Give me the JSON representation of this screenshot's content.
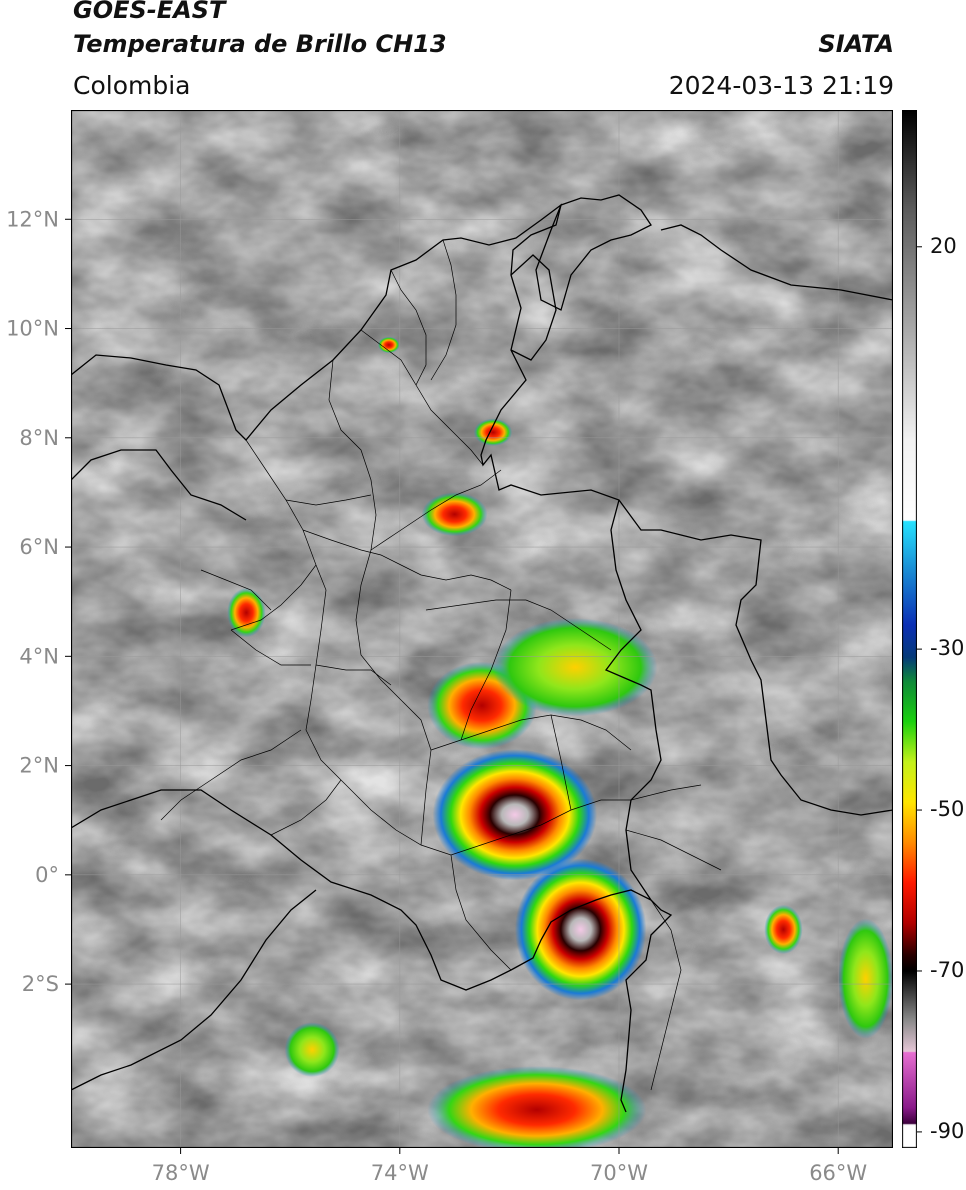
{
  "header": {
    "satellite": "GOES-EAST",
    "product": "Temperatura de Brillo CH13",
    "agency": "SIATA",
    "region": "Colombia",
    "datetime": "2024-03-13 21:19"
  },
  "map": {
    "lat_range": [
      -5.0,
      14.0
    ],
    "lon_range": [
      -80.0,
      -65.0
    ],
    "lat_ticks": [
      {
        "value": 12,
        "label": "12°N"
      },
      {
        "value": 10,
        "label": "10°N"
      },
      {
        "value": 8,
        "label": "8°N"
      },
      {
        "value": 6,
        "label": "6°N"
      },
      {
        "value": 4,
        "label": "4°N"
      },
      {
        "value": 2,
        "label": "2°N"
      },
      {
        "value": 0,
        "label": "0°"
      },
      {
        "value": -2,
        "label": "2°S"
      }
    ],
    "lon_ticks": [
      {
        "value": -78,
        "label": "78°W"
      },
      {
        "value": -74,
        "label": "74°W"
      },
      {
        "value": -70,
        "label": "70°W"
      },
      {
        "value": -66,
        "label": "66°W"
      }
    ],
    "gridlines": true
  },
  "colorbar": {
    "range": [
      -92,
      37
    ],
    "labels": [
      {
        "value": 20,
        "label": "20"
      },
      {
        "value": -30,
        "label": "-30"
      },
      {
        "value": -50,
        "label": "-50"
      },
      {
        "value": -70,
        "label": "-70"
      },
      {
        "value": -90,
        "label": "-90"
      }
    ],
    "stops": [
      {
        "value": 37,
        "color": "#000000"
      },
      {
        "value": 25,
        "color": "#5a5a5a"
      },
      {
        "value": 10,
        "color": "#a8a8a8"
      },
      {
        "value": -4,
        "color": "#f2f2f2"
      },
      {
        "value": -14,
        "color": "#ffffff"
      },
      {
        "value": -14.1,
        "color": "#26e3ff"
      },
      {
        "value": -20,
        "color": "#1a8fd6"
      },
      {
        "value": -27,
        "color": "#0b2fb5"
      },
      {
        "value": -31,
        "color": "#053a7a"
      },
      {
        "value": -34,
        "color": "#0f8a3a"
      },
      {
        "value": -39,
        "color": "#1bd10f"
      },
      {
        "value": -44,
        "color": "#c3f21b"
      },
      {
        "value": -49,
        "color": "#ffe600"
      },
      {
        "value": -54,
        "color": "#ff8c00"
      },
      {
        "value": -59,
        "color": "#ff1a00"
      },
      {
        "value": -64,
        "color": "#b30000"
      },
      {
        "value": -68,
        "color": "#2a0000"
      },
      {
        "value": -70,
        "color": "#000000"
      },
      {
        "value": -76,
        "color": "#888888"
      },
      {
        "value": -80,
        "color": "#e6c7d7"
      },
      {
        "value": -80.1,
        "color": "#e86fd2"
      },
      {
        "value": -87,
        "color": "#8a1a8a"
      },
      {
        "value": -89,
        "color": "#3b003b"
      },
      {
        "value": -89.1,
        "color": "#ffffff"
      },
      {
        "value": -92,
        "color": "#ffffff"
      }
    ]
  },
  "storms": [
    {
      "lon": -71.9,
      "lat": 1.1,
      "rx": 1.5,
      "ry": 1.2,
      "min_temp": -88
    },
    {
      "lon": -70.7,
      "lat": -1.0,
      "rx": 1.2,
      "ry": 1.3,
      "min_temp": -85
    },
    {
      "lon": -72.5,
      "lat": 3.1,
      "rx": 1.0,
      "ry": 0.8,
      "min_temp": -65
    },
    {
      "lon": -70.8,
      "lat": 3.8,
      "rx": 1.5,
      "ry": 0.9,
      "min_temp": -52
    },
    {
      "lon": -73.0,
      "lat": 6.6,
      "rx": 0.6,
      "ry": 0.4,
      "min_temp": -63
    },
    {
      "lon": -76.8,
      "lat": 4.8,
      "rx": 0.35,
      "ry": 0.45,
      "min_temp": -68
    },
    {
      "lon": -67.0,
      "lat": -1.0,
      "rx": 0.35,
      "ry": 0.45,
      "min_temp": -58
    },
    {
      "lon": -72.3,
      "lat": 8.1,
      "rx": 0.35,
      "ry": 0.25,
      "min_temp": -55
    },
    {
      "lon": -74.2,
      "lat": 9.7,
      "rx": 0.2,
      "ry": 0.15,
      "min_temp": -63
    },
    {
      "lon": -71.5,
      "lat": -4.3,
      "rx": 2.0,
      "ry": 0.8,
      "min_temp": -58
    },
    {
      "lon": -65.5,
      "lat": -1.9,
      "rx": 0.5,
      "ry": 1.1,
      "min_temp": -50
    },
    {
      "lon": -75.6,
      "lat": -3.2,
      "rx": 0.5,
      "ry": 0.5,
      "min_temp": -45
    }
  ]
}
